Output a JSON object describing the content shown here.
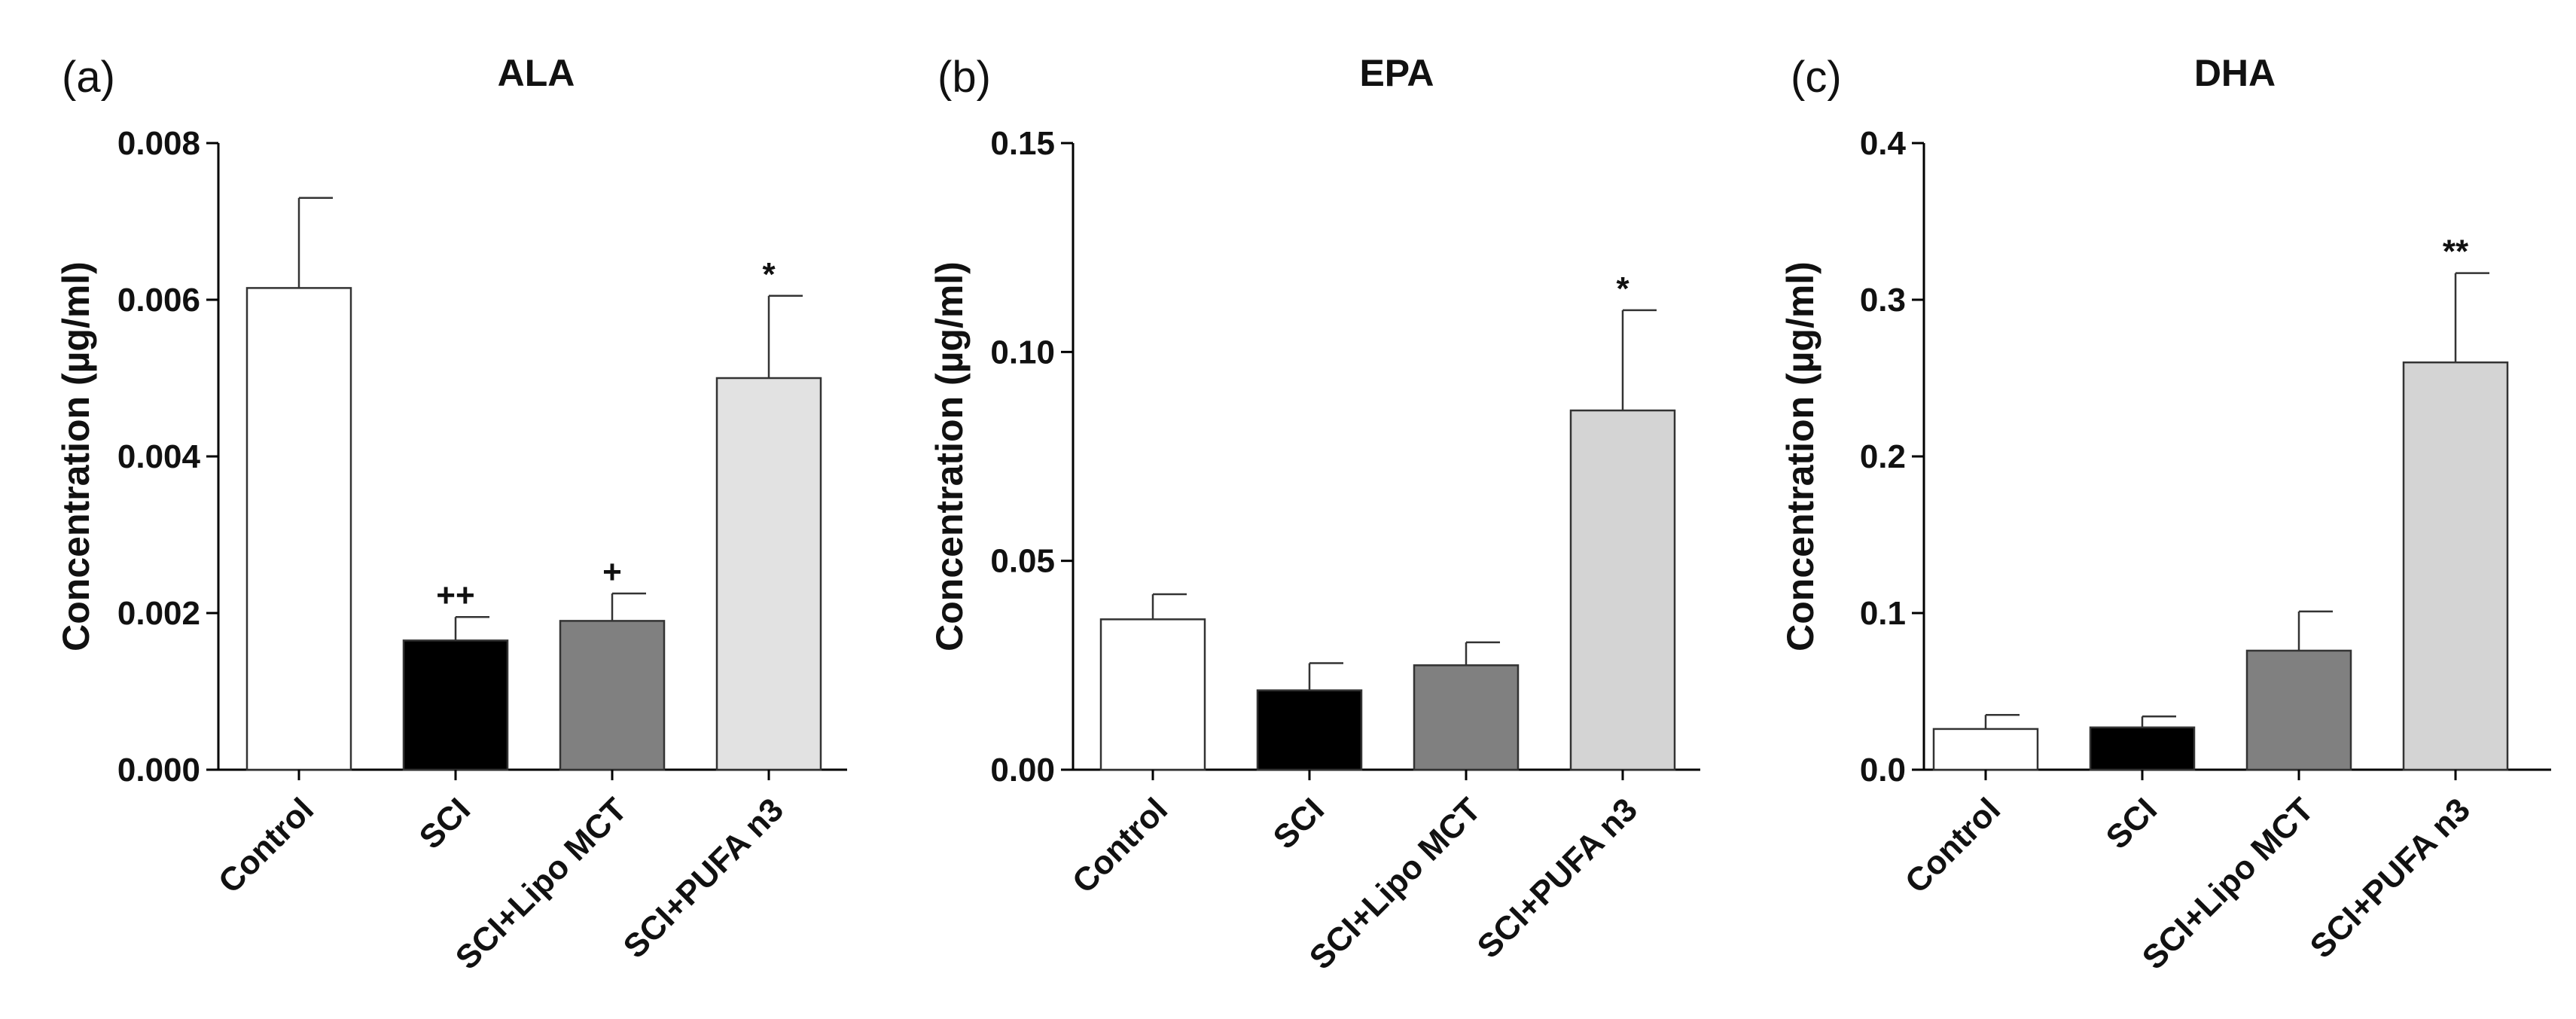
{
  "chart_data": [
    {
      "type": "bar",
      "panel_label": "(a)",
      "title": "ALA",
      "ylabel": "Concentration (µg/ml)",
      "xlabel": "",
      "ylim": [
        0,
        0.008
      ],
      "yticks": [
        0,
        0.002,
        0.004,
        0.006,
        0.008
      ],
      "ytick_labels": [
        "0.000",
        "0.002",
        "0.004",
        "0.006",
        "0.008"
      ],
      "categories": [
        "Control",
        "SCI",
        "SCI+Lipo MCT",
        "SCI+PUFA n3"
      ],
      "values": [
        0.00615,
        0.00165,
        0.0019,
        0.005
      ],
      "errors": [
        0.00115,
        0.0003,
        0.00035,
        0.00105
      ],
      "annotations": [
        "",
        "++",
        "+",
        "*"
      ],
      "colors": [
        "#ffffff",
        "#000000",
        "#808080",
        "#e2e2e2"
      ]
    },
    {
      "type": "bar",
      "panel_label": "(b)",
      "title": "EPA",
      "ylabel": "Concentration (µg/ml)",
      "xlabel": "",
      "ylim": [
        0,
        0.15
      ],
      "yticks": [
        0,
        0.05,
        0.1,
        0.15
      ],
      "ytick_labels": [
        "0.00",
        "0.05",
        "0.10",
        "0.15"
      ],
      "categories": [
        "Control",
        "SCI",
        "SCI+Lipo MCT",
        "SCI+PUFA n3"
      ],
      "values": [
        0.036,
        0.019,
        0.025,
        0.086
      ],
      "errors": [
        0.006,
        0.0065,
        0.0055,
        0.024
      ],
      "annotations": [
        "",
        "",
        "",
        "*"
      ],
      "colors": [
        "#ffffff",
        "#000000",
        "#808080",
        "#d4d4d4"
      ]
    },
    {
      "type": "bar",
      "panel_label": "(c)",
      "title": "DHA",
      "ylabel": "Concentration (µg/ml)",
      "xlabel": "",
      "ylim": [
        0,
        0.4
      ],
      "yticks": [
        0,
        0.1,
        0.2,
        0.3,
        0.4
      ],
      "ytick_labels": [
        "0.0",
        "0.1",
        "0.2",
        "0.3",
        "0.4"
      ],
      "categories": [
        "Control",
        "SCI",
        "SCI+Lipo MCT",
        "SCI+PUFA n3"
      ],
      "values": [
        0.026,
        0.027,
        0.076,
        0.26
      ],
      "errors": [
        0.009,
        0.007,
        0.025,
        0.057
      ],
      "annotations": [
        "",
        "",
        "",
        "**"
      ],
      "colors": [
        "#ffffff",
        "#000000",
        "#808080",
        "#d4d4d4"
      ]
    }
  ]
}
